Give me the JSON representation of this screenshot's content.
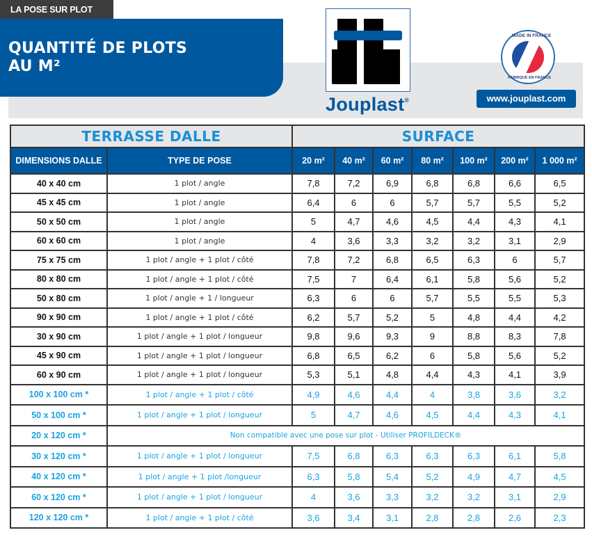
{
  "header": {
    "section_tab": "LA POSE SUR PLOT",
    "title_line1": "QUANTITÉ DE PLOTS",
    "title_line2": "AU M²",
    "brand_name": "Jouplast",
    "brand_mark": "®",
    "badge_top": "MADE IN FRANCE",
    "badge_bottom": "FABRIQUÉ EN FRANCE",
    "website": "www.jouplast.com"
  },
  "colors": {
    "brand_blue": "#00589f",
    "cyan_text": "#1aa3e0",
    "dark_tab": "#3d3d3d",
    "grey_band": "#e5e6e8"
  },
  "table": {
    "group_headers": [
      "TERRASSE DALLE",
      "SURFACE"
    ],
    "columns": [
      "DIMENSIONS DALLE",
      "TYPE DE POSE",
      "20 m²",
      "40 m²",
      "60 m²",
      "80 m²",
      "100 m²",
      "200 m²",
      "1 000 m²"
    ],
    "rows": [
      {
        "dim": "40 x 40 cm",
        "pose": "1 plot / angle",
        "values": [
          "7,8",
          "7,2",
          "6,9",
          "6,8",
          "6,8",
          "6,6",
          "6,5"
        ],
        "highlight": false
      },
      {
        "dim": "45 x 45 cm",
        "pose": "1 plot / angle",
        "values": [
          "6,4",
          "6",
          "6",
          "5,7",
          "5,7",
          "5,5",
          "5,2"
        ],
        "highlight": false
      },
      {
        "dim": "50 x 50 cm",
        "pose": "1 plot / angle",
        "values": [
          "5",
          "4,7",
          "4,6",
          "4,5",
          "4,4",
          "4,3",
          "4,1"
        ],
        "highlight": false
      },
      {
        "dim": "60 x 60 cm",
        "pose": "1 plot / angle",
        "values": [
          "4",
          "3,6",
          "3,3",
          "3,2",
          "3,2",
          "3,1",
          "2,9"
        ],
        "highlight": false
      },
      {
        "dim": "75 x 75 cm",
        "pose": "1 plot / angle + 1 plot / côté",
        "values": [
          "7,8",
          "7,2",
          "6,8",
          "6,5",
          "6,3",
          "6",
          "5,7"
        ],
        "highlight": false
      },
      {
        "dim": "80 x 80 cm",
        "pose": "1 plot / angle +  1 plot / côté",
        "values": [
          "7,5",
          "7",
          "6,4",
          "6,1",
          "5,8",
          "5,6",
          "5,2"
        ],
        "highlight": false
      },
      {
        "dim": "50 x 80 cm",
        "pose": "1 plot / angle + 1 / longueur",
        "values": [
          "6,3",
          "6",
          "6",
          "5,7",
          "5,5",
          "5,5",
          "5,3"
        ],
        "highlight": false
      },
      {
        "dim": "90 x 90 cm",
        "pose": "1 plot / angle +  1 plot / côté",
        "values": [
          "6,2",
          "5,7",
          "5,2",
          "5",
          "4,8",
          "4,4",
          "4,2"
        ],
        "highlight": false
      },
      {
        "dim": "30 x 90 cm",
        "pose": "1 plot / angle + 1 plot / longueur",
        "values": [
          "9,8",
          "9,6",
          "9,3",
          "9",
          "8,8",
          "8,3",
          "7,8"
        ],
        "highlight": false
      },
      {
        "dim": "45 x 90 cm",
        "pose": "1 plot / angle + 1 plot / longueur",
        "values": [
          "6,8",
          "6,5",
          "6,2",
          "6",
          "5,8",
          "5,6",
          "5,2"
        ],
        "highlight": false
      },
      {
        "dim": "60 x 90 cm",
        "pose": "1 plot / angle + 1 plot / longueur",
        "values": [
          "5,3",
          "5,1",
          "4,8",
          "4,4",
          "4,3",
          "4,1",
          "3,9"
        ],
        "highlight": false
      },
      {
        "dim": "100 x 100 cm *",
        "pose": "1 plot / angle + 1 plot / côté",
        "values": [
          "4,9",
          "4,6",
          "4,4",
          "4",
          "3,8",
          "3,6",
          "3,2"
        ],
        "highlight": true
      },
      {
        "dim": "50 x 100 cm *",
        "pose": "1 plot / angle + 1 plot / longueur",
        "values": [
          "5",
          "4,7",
          "4,6",
          "4,5",
          "4,4",
          "4,3",
          "4,1"
        ],
        "highlight": true
      },
      {
        "dim": "20 x 120 cm *",
        "note": "Non compatible avec une pose sur plot - Utiliser PROFILDECK®",
        "highlight": true
      },
      {
        "dim": "30 x 120 cm *",
        "pose": "1 plot / angle + 1 plot / longueur",
        "values": [
          "7,5",
          "6,8",
          "6,3",
          "6,3",
          "6,3",
          "6,1",
          "5,8"
        ],
        "highlight": true
      },
      {
        "dim": "40 x 120 cm *",
        "pose": "1 plot / angle + 1 plot /longueur",
        "values": [
          "6,3",
          "5,8",
          "5,4",
          "5,2",
          "4,9",
          "4,7",
          "4,5"
        ],
        "highlight": true
      },
      {
        "dim": "60 x 120 cm *",
        "pose": "1 plot / angle + 1 plot / longueur",
        "values": [
          "4",
          "3,6",
          "3,3",
          "3,2",
          "3,2",
          "3,1",
          "2,9"
        ],
        "highlight": true
      },
      {
        "dim": "120 x 120 cm *",
        "pose": "1 plot / angle + 1 plot / côté",
        "values": [
          "3,6",
          "3,4",
          "3,1",
          "2,8",
          "2,8",
          "2,6",
          "2,3"
        ],
        "highlight": true
      }
    ]
  }
}
